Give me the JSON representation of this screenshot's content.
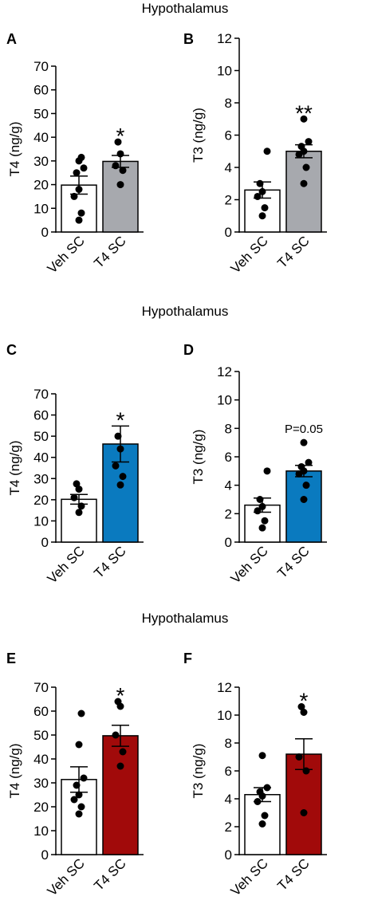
{
  "section_titles": [
    "Hypothalamus",
    "Hypothalamus",
    "Hypothalamus"
  ],
  "chart_data": [
    {
      "panel": "A",
      "type": "bar",
      "ylabel": "T4 (ng/g)",
      "ylim": [
        0,
        70
      ],
      "yticks": [
        "0",
        "10",
        "20",
        "30",
        "40",
        "50",
        "60",
        "70"
      ],
      "categories": [
        "Veh SC",
        "T4 SC"
      ],
      "values": [
        19.8,
        29.8
      ],
      "sem": [
        3.8,
        2.5
      ],
      "bar_colors": [
        "#ffffff",
        "#a7a9ae"
      ],
      "points": [
        [
          5,
          8,
          15,
          18,
          25,
          27,
          30,
          31.5
        ],
        [
          20,
          26,
          28,
          33,
          38
        ]
      ],
      "annotation": "*"
    },
    {
      "panel": "B",
      "type": "bar",
      "ylabel": "T3 (ng/g)",
      "ylim": [
        0,
        12
      ],
      "yticks": [
        "0",
        "2",
        "4",
        "6",
        "8",
        "10",
        "12"
      ],
      "categories": [
        "Veh SC",
        "T4 SC"
      ],
      "values": [
        2.6,
        5.0
      ],
      "sem": [
        0.5,
        0.4
      ],
      "bar_colors": [
        "#ffffff",
        "#a7a9ae"
      ],
      "points": [
        [
          1.0,
          1.5,
          2.2,
          2.5,
          3.0,
          5.0
        ],
        [
          3.0,
          4.0,
          4.8,
          5.0,
          5.3,
          5.6,
          7.0
        ]
      ],
      "annotation": "**"
    },
    {
      "panel": "C",
      "type": "bar",
      "ylabel": "T4 (ng/g)",
      "ylim": [
        0,
        70
      ],
      "yticks": [
        "0",
        "10",
        "20",
        "30",
        "40",
        "50",
        "60",
        "70"
      ],
      "categories": [
        "Veh SC",
        "T4 SC"
      ],
      "values": [
        20.2,
        46.3
      ],
      "sem": [
        2.3,
        8.5
      ],
      "bar_colors": [
        "#ffffff",
        "#0a7abf"
      ],
      "points": [
        [
          14,
          17,
          21,
          25,
          27.5
        ],
        [
          27,
          31,
          36,
          44,
          50
        ]
      ],
      "annotation": "*"
    },
    {
      "panel": "D",
      "type": "bar",
      "ylabel": "T3 (ng/g)",
      "ylim": [
        0,
        12
      ],
      "yticks": [
        "0",
        "2",
        "4",
        "6",
        "8",
        "10",
        "12"
      ],
      "categories": [
        "Veh SC",
        "T4 SC"
      ],
      "values": [
        2.6,
        5.0
      ],
      "sem": [
        0.5,
        0.4
      ],
      "bar_colors": [
        "#ffffff",
        "#0a7abf"
      ],
      "points": [
        [
          1.0,
          1.5,
          2.2,
          2.5,
          3.0,
          5.0
        ],
        [
          3.0,
          4.0,
          4.8,
          5.0,
          5.3,
          5.6,
          7.0
        ]
      ],
      "annotation": "P=0.05"
    },
    {
      "panel": "E",
      "type": "bar",
      "ylabel": "T4 (ng/g)",
      "ylim": [
        0,
        70
      ],
      "yticks": [
        "0",
        "10",
        "20",
        "30",
        "40",
        "50",
        "60",
        "70"
      ],
      "categories": [
        "Veh SC",
        "T4 SC"
      ],
      "values": [
        31.4,
        49.7
      ],
      "sem": [
        5.3,
        4.4
      ],
      "bar_colors": [
        "#ffffff",
        "#a10a0a"
      ],
      "points": [
        [
          17,
          20,
          23,
          25,
          29,
          32,
          46,
          59
        ],
        [
          37,
          43,
          50,
          62,
          64
        ]
      ],
      "annotation": "*"
    },
    {
      "panel": "F",
      "type": "bar",
      "ylabel": "T3 (ng/g)",
      "ylim": [
        0,
        12
      ],
      "yticks": [
        "0",
        "2",
        "4",
        "6",
        "8",
        "10",
        "12"
      ],
      "categories": [
        "Veh SC",
        "T4 SC"
      ],
      "values": [
        4.3,
        7.2
      ],
      "sem": [
        0.5,
        1.1
      ],
      "bar_colors": [
        "#ffffff",
        "#a10a0a"
      ],
      "points": [
        [
          2.2,
          2.8,
          3.8,
          4.2,
          4.5,
          4.8,
          7.1
        ],
        [
          3.0,
          6.0,
          7.0,
          10.2,
          10.6
        ]
      ],
      "annotation": "*"
    }
  ]
}
